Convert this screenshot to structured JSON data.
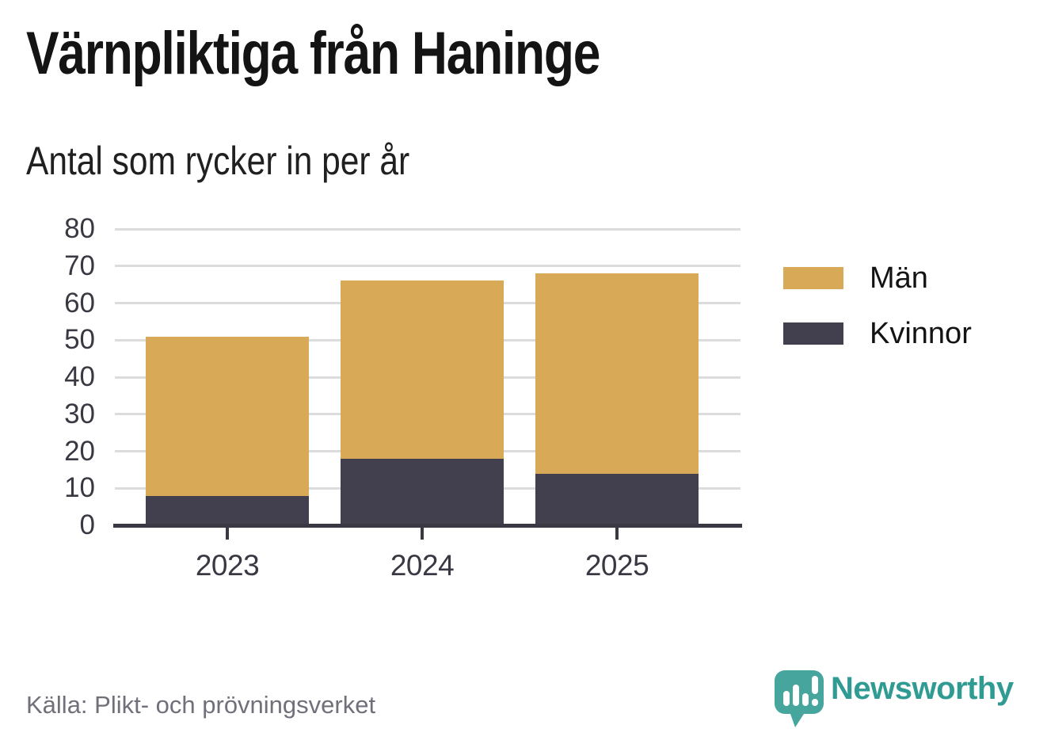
{
  "header": {
    "title": "Värnpliktiga från Haninge",
    "subtitle": "Antal som rycker in per år"
  },
  "chart_data": {
    "type": "bar",
    "stacked": true,
    "title": "Värnpliktiga från Haninge",
    "subtitle": "Antal som rycker in per år",
    "categories": [
      "2023",
      "2024",
      "2025"
    ],
    "series": [
      {
        "name": "Kvinnor",
        "color": "#42404E",
        "values": [
          8,
          18,
          14
        ]
      },
      {
        "name": "Män",
        "color": "#D8AA58",
        "values": [
          43,
          48,
          54
        ]
      }
    ],
    "stack_totals": [
      51,
      66,
      68
    ],
    "ylim": [
      0,
      80
    ],
    "yticks": [
      0,
      10,
      20,
      30,
      40,
      50,
      60,
      70,
      80
    ],
    "grid": "horizontal",
    "legend_position": "right",
    "legend_order": [
      "Män",
      "Kvinnor"
    ],
    "xlabel": "",
    "ylabel": ""
  },
  "legend": {
    "items": [
      {
        "label": "Män",
        "color": "#D8AA58"
      },
      {
        "label": "Kvinnor",
        "color": "#42404E"
      }
    ]
  },
  "footer": {
    "source": "Källa: Plikt- och prövningsverket",
    "brand": "Newsworthy"
  },
  "colors": {
    "bar_gold": "#D8AA58",
    "bar_dark": "#42404E",
    "axis": "#3A3943",
    "grid": "#DCDCDC",
    "source_text": "#70707A",
    "logo_teal": "#46A69D",
    "brand_teal": "#2F9B92"
  }
}
